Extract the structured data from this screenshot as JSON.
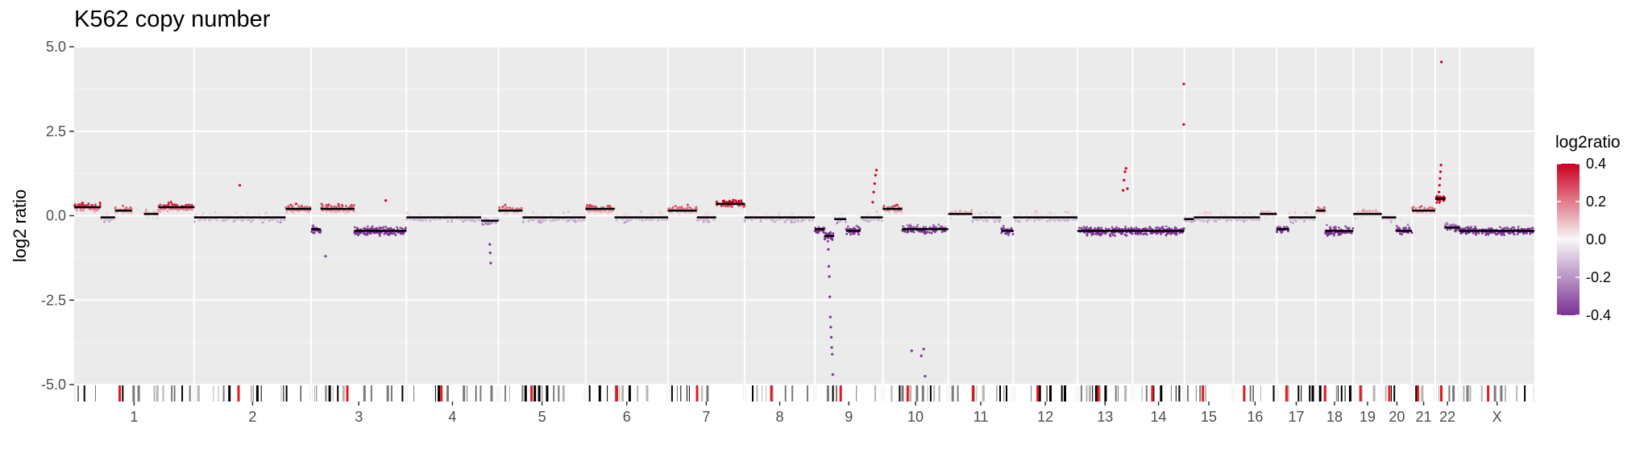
{
  "chart_data": {
    "type": "scatter",
    "title": "K562 copy number",
    "xlabel": "",
    "ylabel": "log2 ratio",
    "ylim": [
      -5.5,
      5.0
    ],
    "y_ticks": [
      5.0,
      2.5,
      0.0,
      -2.5,
      -5.0
    ],
    "y_tick_labels": [
      "5.0",
      "2.5",
      "0.0",
      "-2.5",
      "-5.0"
    ],
    "grid": true,
    "legend": {
      "title": "log2ratio",
      "position": "right",
      "range": [
        -0.4,
        0.4
      ],
      "ticks": [
        0.4,
        0.2,
        0.0,
        -0.2,
        -0.4
      ],
      "tick_labels": [
        "0.4",
        "0.2",
        "0.0",
        "-0.2",
        "-0.4"
      ],
      "colors": {
        "low": "#7b3294",
        "mid": "#f7f7f7",
        "high": "#ca0020"
      }
    },
    "chromosomes": [
      {
        "label": "1",
        "size": 249
      },
      {
        "label": "2",
        "size": 243
      },
      {
        "label": "3",
        "size": 198
      },
      {
        "label": "4",
        "size": 191
      },
      {
        "label": "5",
        "size": 181
      },
      {
        "label": "6",
        "size": 171
      },
      {
        "label": "7",
        "size": 159
      },
      {
        "label": "8",
        "size": 146
      },
      {
        "label": "9",
        "size": 141
      },
      {
        "label": "10",
        "size": 136
      },
      {
        "label": "11",
        "size": 135
      },
      {
        "label": "12",
        "size": 133
      },
      {
        "label": "13",
        "size": 115
      },
      {
        "label": "14",
        "size": 107
      },
      {
        "label": "15",
        "size": 102
      },
      {
        "label": "16",
        "size": 90
      },
      {
        "label": "17",
        "size": 81
      },
      {
        "label": "18",
        "size": 78
      },
      {
        "label": "19",
        "size": 59
      },
      {
        "label": "20",
        "size": 63
      },
      {
        "label": "21",
        "size": 48
      },
      {
        "label": "22",
        "size": 51
      },
      {
        "label": "X",
        "size": 155
      }
    ],
    "segments": [
      {
        "chrom": "1",
        "start": 0,
        "end": 55,
        "mean": 0.25
      },
      {
        "chrom": "1",
        "start": 55,
        "end": 85,
        "mean": -0.05
      },
      {
        "chrom": "1",
        "start": 85,
        "end": 120,
        "mean": 0.15
      },
      {
        "chrom": "1",
        "start": 145,
        "end": 175,
        "mean": 0.05
      },
      {
        "chrom": "1",
        "start": 175,
        "end": 249,
        "mean": 0.25
      },
      {
        "chrom": "2",
        "start": 0,
        "end": 190,
        "mean": -0.05
      },
      {
        "chrom": "2",
        "start": 190,
        "end": 243,
        "mean": 0.2
      },
      {
        "chrom": "3",
        "start": 0,
        "end": 20,
        "mean": -0.4
      },
      {
        "chrom": "3",
        "start": 20,
        "end": 90,
        "mean": 0.2
      },
      {
        "chrom": "3",
        "start": 90,
        "end": 198,
        "mean": -0.45
      },
      {
        "chrom": "4",
        "start": 0,
        "end": 155,
        "mean": -0.05
      },
      {
        "chrom": "4",
        "start": 155,
        "end": 191,
        "mean": -0.15
      },
      {
        "chrom": "5",
        "start": 0,
        "end": 50,
        "mean": 0.15
      },
      {
        "chrom": "5",
        "start": 50,
        "end": 181,
        "mean": -0.05
      },
      {
        "chrom": "6",
        "start": 0,
        "end": 60,
        "mean": 0.2
      },
      {
        "chrom": "6",
        "start": 60,
        "end": 171,
        "mean": -0.05
      },
      {
        "chrom": "7",
        "start": 0,
        "end": 60,
        "mean": 0.15
      },
      {
        "chrom": "7",
        "start": 60,
        "end": 100,
        "mean": -0.05
      },
      {
        "chrom": "7",
        "start": 100,
        "end": 159,
        "mean": 0.35
      },
      {
        "chrom": "8",
        "start": 0,
        "end": 146,
        "mean": -0.05
      },
      {
        "chrom": "9",
        "start": 0,
        "end": 20,
        "mean": -0.4
      },
      {
        "chrom": "9",
        "start": 20,
        "end": 40,
        "mean": -0.6
      },
      {
        "chrom": "9",
        "start": 40,
        "end": 65,
        "mean": -0.1
      },
      {
        "chrom": "9",
        "start": 65,
        "end": 95,
        "mean": -0.45
      },
      {
        "chrom": "9",
        "start": 95,
        "end": 141,
        "mean": -0.05
      },
      {
        "chrom": "10",
        "start": 0,
        "end": 40,
        "mean": 0.2
      },
      {
        "chrom": "10",
        "start": 40,
        "end": 136,
        "mean": -0.4
      },
      {
        "chrom": "11",
        "start": 0,
        "end": 50,
        "mean": 0.05
      },
      {
        "chrom": "11",
        "start": 50,
        "end": 110,
        "mean": -0.05
      },
      {
        "chrom": "11",
        "start": 110,
        "end": 135,
        "mean": -0.45
      },
      {
        "chrom": "12",
        "start": 0,
        "end": 133,
        "mean": -0.05
      },
      {
        "chrom": "13",
        "start": 0,
        "end": 115,
        "mean": -0.45
      },
      {
        "chrom": "14",
        "start": 0,
        "end": 107,
        "mean": -0.45
      },
      {
        "chrom": "15",
        "start": 0,
        "end": 20,
        "mean": -0.1
      },
      {
        "chrom": "15",
        "start": 20,
        "end": 102,
        "mean": -0.05
      },
      {
        "chrom": "16",
        "start": 0,
        "end": 55,
        "mean": -0.05
      },
      {
        "chrom": "16",
        "start": 55,
        "end": 90,
        "mean": 0.05
      },
      {
        "chrom": "17",
        "start": 0,
        "end": 25,
        "mean": -0.4
      },
      {
        "chrom": "17",
        "start": 25,
        "end": 81,
        "mean": -0.05
      },
      {
        "chrom": "18",
        "start": 0,
        "end": 20,
        "mean": 0.15
      },
      {
        "chrom": "18",
        "start": 20,
        "end": 78,
        "mean": -0.45
      },
      {
        "chrom": "19",
        "start": 0,
        "end": 59,
        "mean": 0.05
      },
      {
        "chrom": "20",
        "start": 0,
        "end": 30,
        "mean": -0.05
      },
      {
        "chrom": "20",
        "start": 30,
        "end": 63,
        "mean": -0.45
      },
      {
        "chrom": "21",
        "start": 0,
        "end": 48,
        "mean": 0.15
      },
      {
        "chrom": "22",
        "start": 0,
        "end": 20,
        "mean": 0.5
      },
      {
        "chrom": "22",
        "start": 20,
        "end": 51,
        "mean": -0.35
      },
      {
        "chrom": "X",
        "start": 0,
        "end": 155,
        "mean": -0.45
      }
    ],
    "outliers": [
      {
        "chrom": "2",
        "pos": 95,
        "y": 0.9
      },
      {
        "chrom": "3",
        "pos": 30,
        "y": -1.2
      },
      {
        "chrom": "3",
        "pos": 155,
        "y": 0.45
      },
      {
        "chrom": "4",
        "pos": 173,
        "y": -0.85
      },
      {
        "chrom": "4",
        "pos": 174,
        "y": -1.1
      },
      {
        "chrom": "4",
        "pos": 175,
        "y": -1.4
      },
      {
        "chrom": "9",
        "pos": 28,
        "y": -1.0
      },
      {
        "chrom": "9",
        "pos": 29,
        "y": -1.5
      },
      {
        "chrom": "9",
        "pos": 30,
        "y": -1.8
      },
      {
        "chrom": "9",
        "pos": 31,
        "y": -2.4
      },
      {
        "chrom": "9",
        "pos": 32,
        "y": -3.0
      },
      {
        "chrom": "9",
        "pos": 33,
        "y": -3.3
      },
      {
        "chrom": "9",
        "pos": 34,
        "y": -3.6
      },
      {
        "chrom": "9",
        "pos": 35,
        "y": -3.9
      },
      {
        "chrom": "9",
        "pos": 36,
        "y": -4.1
      },
      {
        "chrom": "9",
        "pos": 37,
        "y": -4.7
      },
      {
        "chrom": "9",
        "pos": 120,
        "y": 0.4
      },
      {
        "chrom": "9",
        "pos": 122,
        "y": 0.7
      },
      {
        "chrom": "9",
        "pos": 124,
        "y": 0.95
      },
      {
        "chrom": "9",
        "pos": 126,
        "y": 1.2
      },
      {
        "chrom": "9",
        "pos": 128,
        "y": 1.35
      },
      {
        "chrom": "10",
        "pos": 60,
        "y": -4.0
      },
      {
        "chrom": "10",
        "pos": 80,
        "y": -4.15
      },
      {
        "chrom": "10",
        "pos": 85,
        "y": -3.95
      },
      {
        "chrom": "10",
        "pos": 88,
        "y": -4.75
      },
      {
        "chrom": "13",
        "pos": 95,
        "y": 0.75
      },
      {
        "chrom": "13",
        "pos": 97,
        "y": 1.05
      },
      {
        "chrom": "13",
        "pos": 99,
        "y": 1.3
      },
      {
        "chrom": "13",
        "pos": 101,
        "y": 1.4
      },
      {
        "chrom": "13",
        "pos": 104,
        "y": 0.8
      },
      {
        "chrom": "14",
        "pos": 106,
        "y": 3.9
      },
      {
        "chrom": "14",
        "pos": 106,
        "y": 2.7
      },
      {
        "chrom": "22",
        "pos": 8,
        "y": 0.7
      },
      {
        "chrom": "22",
        "pos": 9,
        "y": 0.9
      },
      {
        "chrom": "22",
        "pos": 10,
        "y": 1.1
      },
      {
        "chrom": "22",
        "pos": 11,
        "y": 1.3
      },
      {
        "chrom": "22",
        "pos": 12,
        "y": 1.5
      },
      {
        "chrom": "22",
        "pos": 13,
        "y": 4.55
      }
    ]
  }
}
